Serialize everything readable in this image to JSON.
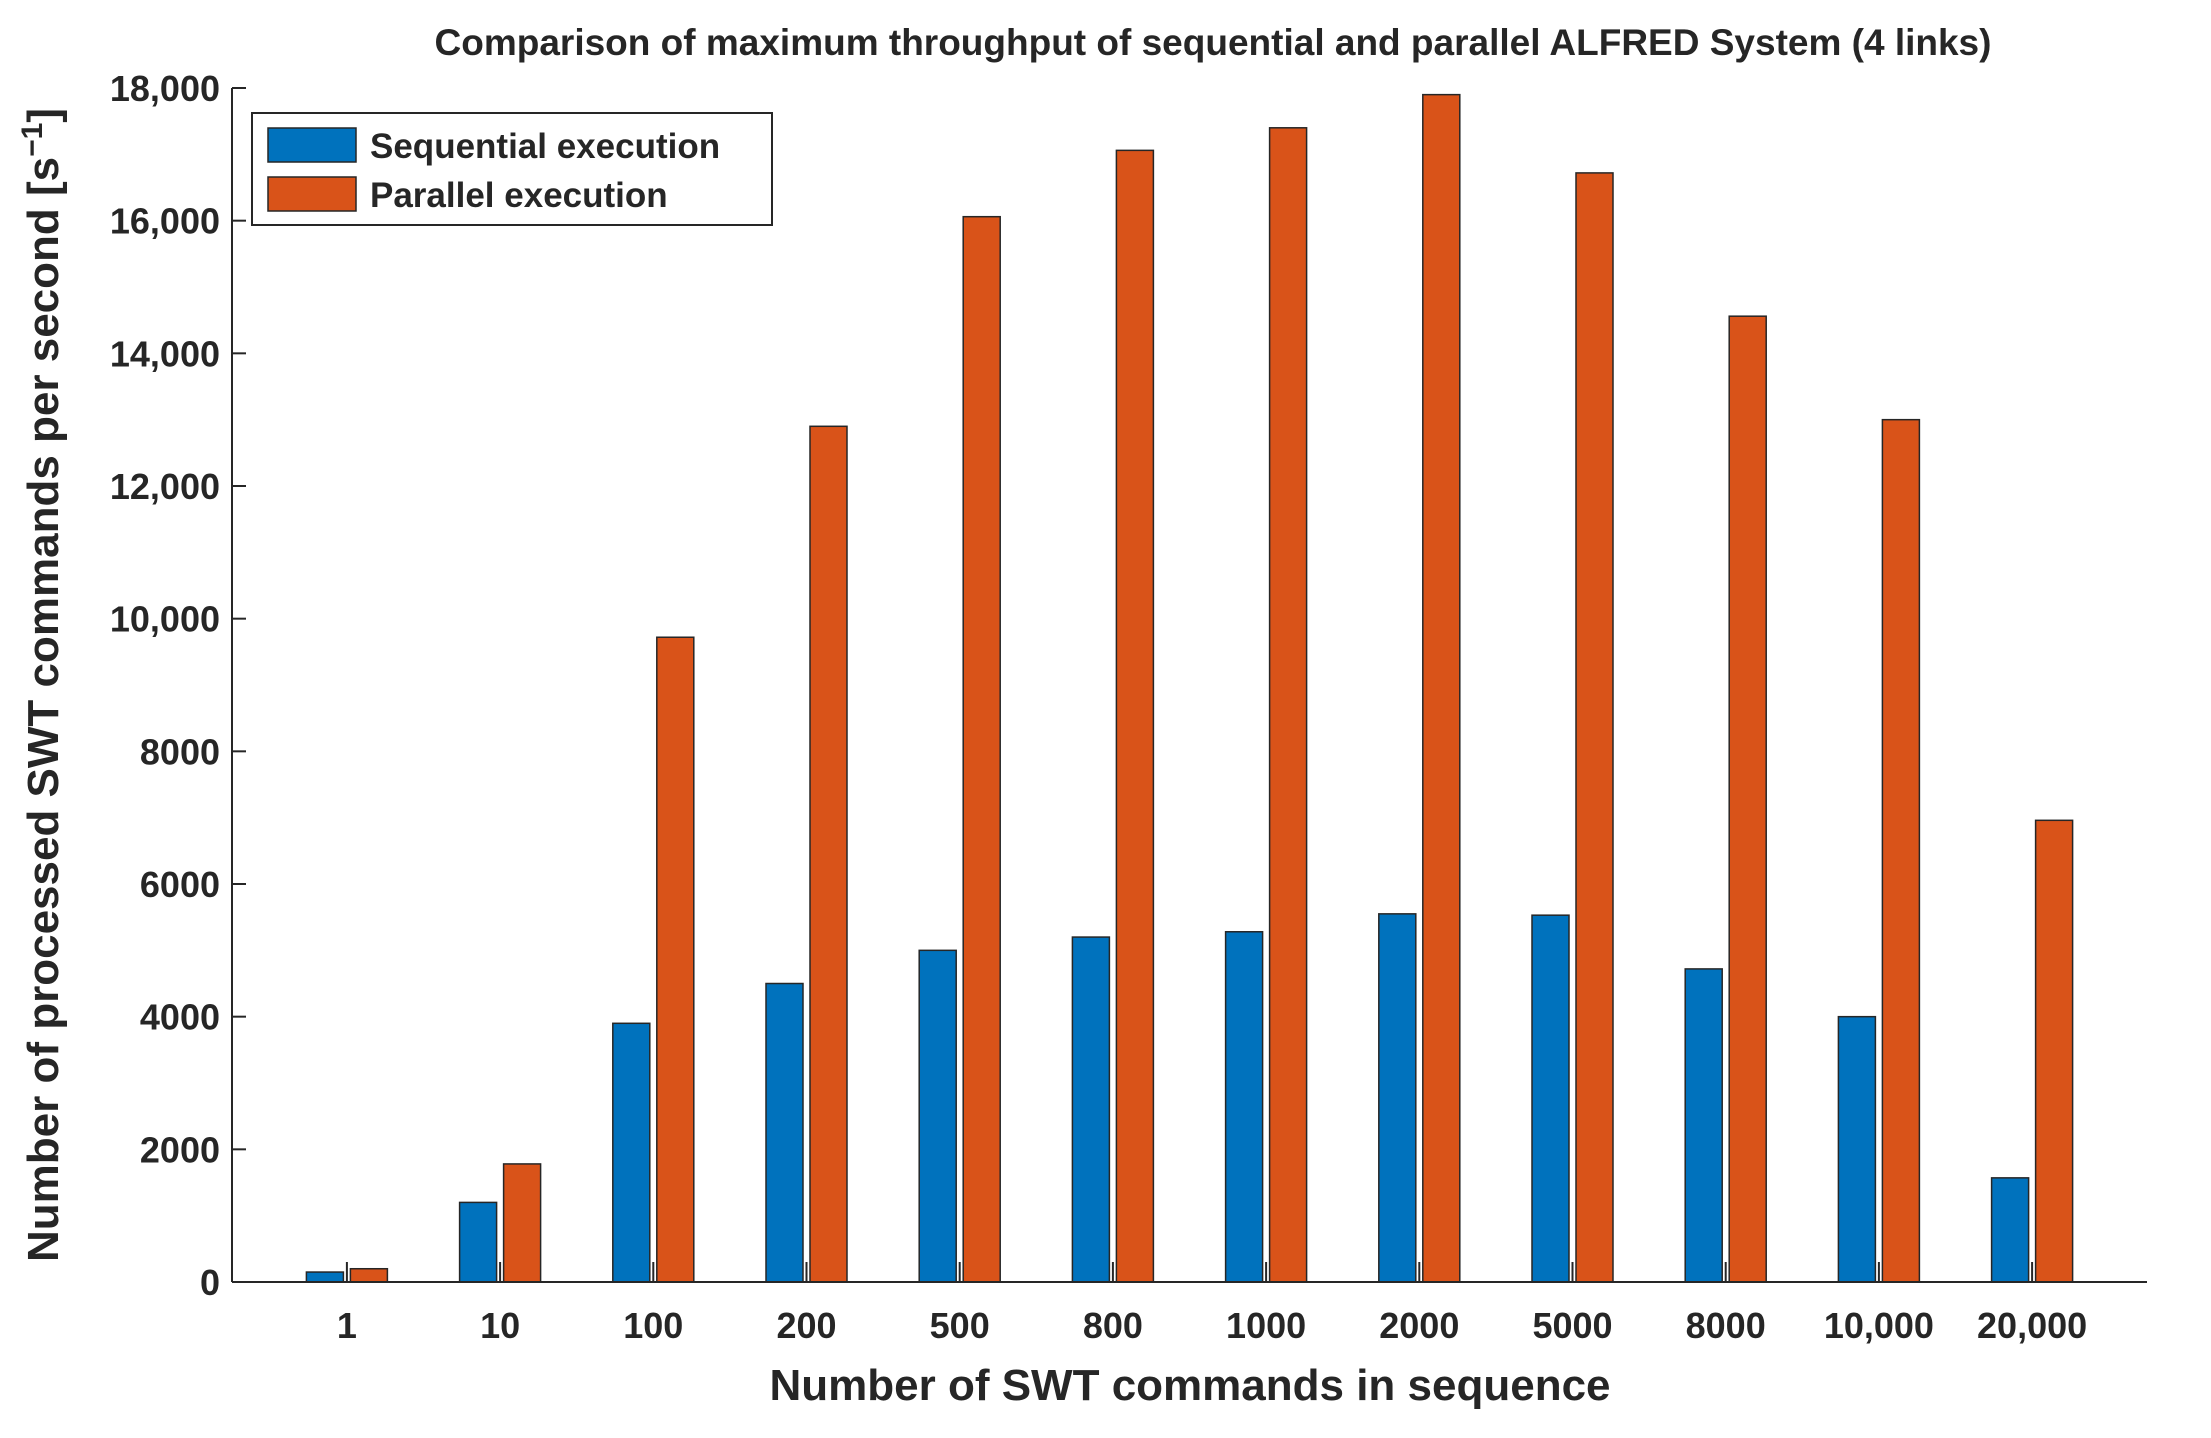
{
  "chart_data": {
    "type": "bar",
    "title": "Comparison of maximum throughput of sequential and parallel ALFRED System (4 links)",
    "xlabel": "Number of SWT commands in sequence",
    "ylabel_main": "Number of processed SWT commands per second [s",
    "ylabel_sup": "−1",
    "ylabel_close": "]",
    "ylim": [
      0,
      18000
    ],
    "yticks": [
      0,
      2000,
      4000,
      6000,
      8000,
      10000,
      12000,
      14000,
      16000,
      18000
    ],
    "ytick_labels": [
      "0",
      "2000",
      "4000",
      "6000",
      "8000",
      "10,000",
      "12,000",
      "14,000",
      "16,000",
      "18,000"
    ],
    "categories": [
      "1",
      "10",
      "100",
      "200",
      "500",
      "800",
      "1000",
      "2000",
      "5000",
      "8000",
      "10,000",
      "20,000"
    ],
    "series": [
      {
        "name": "Sequential execution",
        "color": "#0072BD",
        "values": [
          150,
          1200,
          3900,
          4500,
          5000,
          5200,
          5280,
          5550,
          5530,
          4720,
          4000,
          1570
        ]
      },
      {
        "name": "Parallel execution",
        "color": "#D95319",
        "values": [
          200,
          1780,
          9720,
          12900,
          16060,
          17060,
          17400,
          17900,
          16720,
          14560,
          13000,
          6960
        ]
      }
    ],
    "legend": "top-left",
    "grid": false
  }
}
